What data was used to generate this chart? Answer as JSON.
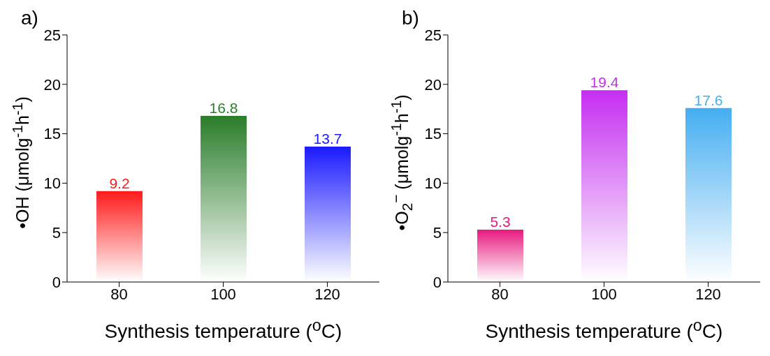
{
  "chart_data": [
    {
      "type": "bar",
      "title": "a)",
      "xlabel": "Synthesis temperature ($^{o}$C)",
      "ylabel": "•OH (μmolg$^{-1}$h$^{-1}$)",
      "categories": [
        "80",
        "100",
        "120"
      ],
      "values": [
        9.2,
        16.8,
        13.7
      ],
      "colors": [
        "#ff1a1a",
        "#2a7d2a",
        "#1a1aff"
      ],
      "ylim": [
        0,
        25
      ],
      "yticks": [
        0,
        5,
        10,
        15,
        20,
        25
      ],
      "data_labels": true,
      "grid": false,
      "legend": false
    },
    {
      "type": "bar",
      "title": "b)",
      "xlabel": "Synthesis temperature ($^{o}$C)",
      "ylabel": "•O$_{2}$$^{−}$ (μmolg$^{-1}$h$^{-1}$)",
      "categories": [
        "80",
        "100",
        "120"
      ],
      "values": [
        5.3,
        19.4,
        17.6
      ],
      "colors": [
        "#e8197f",
        "#c52ef0",
        "#45aef0"
      ],
      "ylim": [
        0,
        25
      ],
      "yticks": [
        0,
        5,
        10,
        15,
        20,
        25
      ],
      "data_labels": true,
      "grid": false,
      "legend": false
    }
  ]
}
